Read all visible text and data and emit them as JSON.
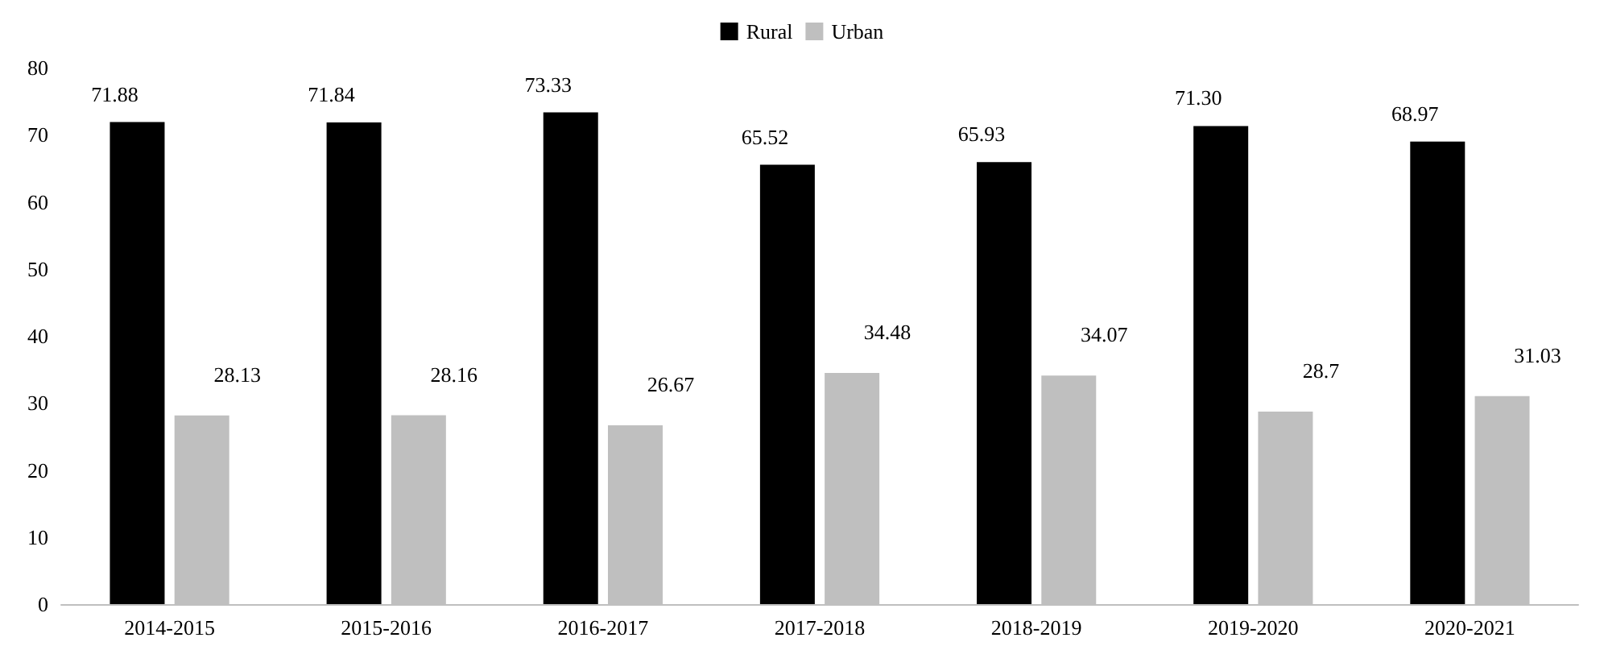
{
  "chart_data": {
    "type": "bar",
    "categories": [
      "2014-2015",
      "2015-2016",
      "2016-2017",
      "2017-2018",
      "2018-2019",
      "2019-2020",
      "2020-2021"
    ],
    "series": [
      {
        "name": "Rural",
        "color": "#000000",
        "values": [
          71.88,
          71.84,
          73.33,
          65.52,
          65.93,
          71.3,
          68.97
        ],
        "value_labels": [
          "71.88",
          "71.84",
          "73.33",
          "65.52",
          "65.93",
          "71.30",
          "68.97"
        ]
      },
      {
        "name": "Urban",
        "color": "#bfbfbf",
        "values": [
          28.13,
          28.16,
          26.67,
          34.48,
          34.07,
          28.7,
          31.03
        ],
        "value_labels": [
          "28.13",
          "28.16",
          "26.67",
          "34.48",
          "34.07",
          "28.7",
          "31.03"
        ]
      }
    ],
    "ylim": [
      0,
      80
    ],
    "yticks": [
      0,
      10,
      20,
      30,
      40,
      50,
      60,
      70,
      80
    ],
    "grid": false,
    "legend": "top"
  }
}
